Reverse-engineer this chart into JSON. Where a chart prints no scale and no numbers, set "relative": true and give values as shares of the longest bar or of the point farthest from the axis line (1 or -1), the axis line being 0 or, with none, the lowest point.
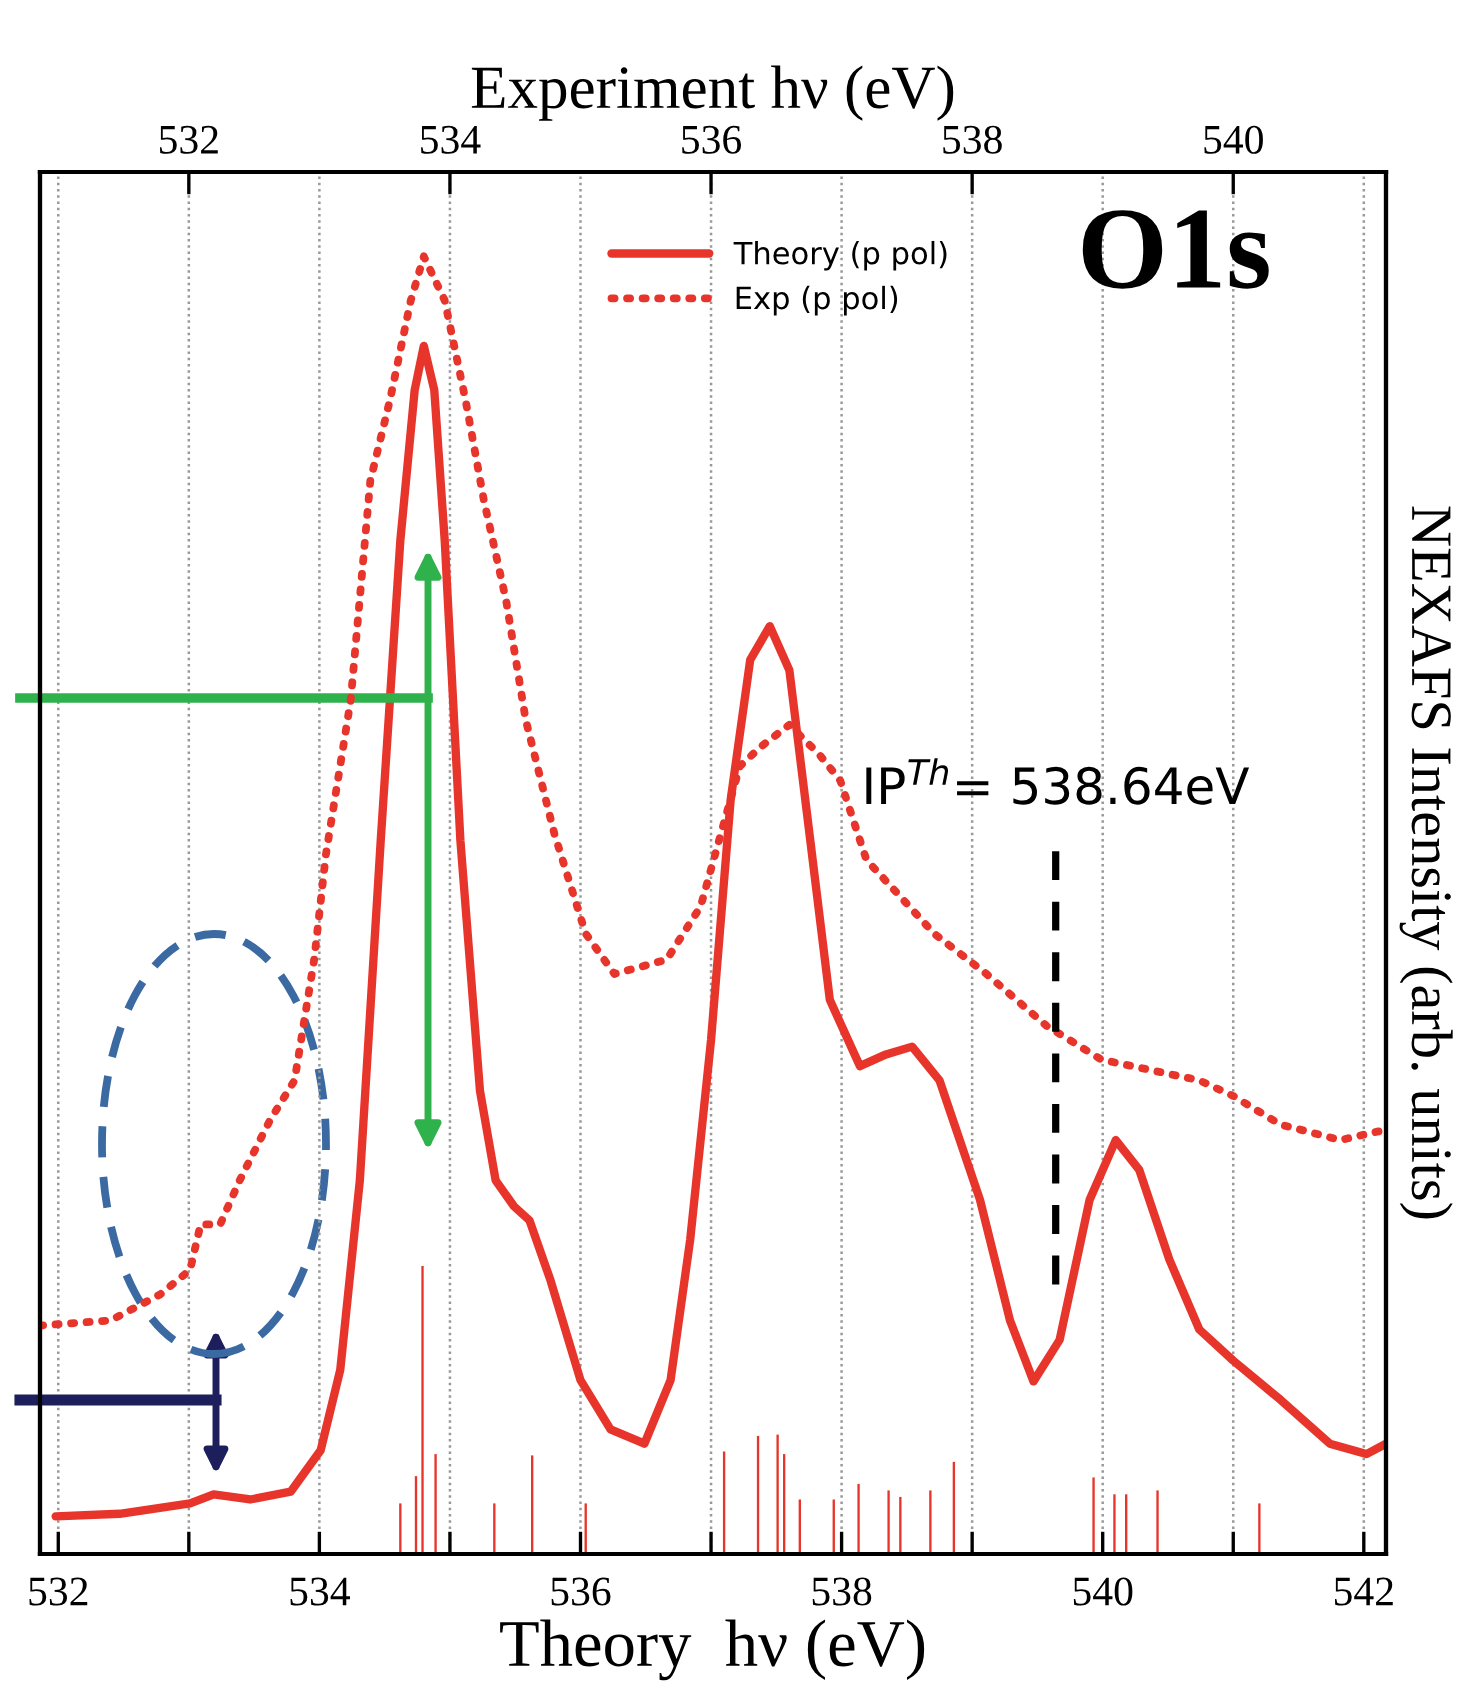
{
  "chart_data": {
    "type": "line",
    "relative": true,
    "xlabel": "Theory  hν (eV)",
    "x2label": "Experiment hν (eV)",
    "ylabel": "NEXAFS Intensity (arb. units)",
    "xlim": [
      531.86,
      542.17
    ],
    "xticks": [
      532,
      {
        "value": 533,
        "label": null
      },
      534,
      {
        "value": 535,
        "label": null
      },
      536,
      {
        "value": 537,
        "label": null
      },
      538,
      {
        "value": 539,
        "label": null
      },
      540,
      {
        "value": 541,
        "label": null
      },
      542
    ],
    "x2lim": [
      530.86,
      541.17
    ],
    "x2ticks": [
      532,
      534,
      536,
      538,
      540
    ],
    "grid": "x",
    "legend": "top",
    "annotations": [
      "O1s"
    ],
    "ref_lines": [
      {
        "axis": "x2",
        "value": 538.64,
        "label": "IP$^{Th}$= 538.64eV",
        "color": "#000000",
        "line_style": "dashed"
      }
    ],
    "series": [
      {
        "name": "Theory (p pol)",
        "color": "#e8352b",
        "line_style": "solid",
        "x": [
          531.98,
          532.47,
          533.01,
          533.19,
          533.47,
          533.78,
          534.01,
          534.16,
          534.31,
          534.47,
          534.62,
          534.73,
          534.8,
          534.88,
          534.96,
          535.08,
          535.23,
          535.35,
          535.49,
          535.61,
          535.77,
          536.0,
          536.23,
          536.49,
          536.69,
          536.84,
          537.0,
          537.15,
          537.3,
          537.45,
          537.6,
          537.76,
          537.91,
          538.14,
          538.34,
          538.54,
          538.75,
          539.06,
          539.29,
          539.47,
          539.67,
          539.9,
          540.1,
          540.28,
          540.51,
          540.74,
          541.0,
          541.36,
          541.74,
          542.02,
          542.17
        ],
        "values": [
          0.029,
          0.031,
          0.039,
          0.046,
          0.042,
          0.048,
          0.08,
          0.142,
          0.288,
          0.55,
          0.781,
          0.897,
          0.931,
          0.897,
          0.781,
          0.55,
          0.357,
          0.288,
          0.268,
          0.257,
          0.211,
          0.134,
          0.096,
          0.085,
          0.134,
          0.242,
          0.396,
          0.581,
          0.689,
          0.715,
          0.681,
          0.55,
          0.427,
          0.376,
          0.385,
          0.391,
          0.365,
          0.273,
          0.18,
          0.133,
          0.165,
          0.273,
          0.319,
          0.296,
          0.227,
          0.173,
          0.149,
          0.119,
          0.085,
          0.077,
          0.085
        ]
      },
      {
        "name": "Exp (p pol)",
        "color": "#e8352b",
        "line_style": "dotted",
        "axis": "x2",
        "x": [
          530.86,
          531.4,
          531.78,
          532.01,
          532.09,
          532.24,
          532.39,
          532.62,
          532.81,
          532.96,
          533.05,
          533.24,
          533.39,
          533.54,
          533.7,
          533.8,
          533.96,
          534.12,
          534.26,
          534.43,
          534.58,
          534.8,
          535.04,
          535.26,
          535.66,
          535.92,
          536.22,
          536.38,
          536.6,
          536.83,
          536.99,
          537.19,
          537.71,
          538.11,
          538.57,
          538.99,
          539.74,
          540.0,
          540.36,
          540.82,
          541.17
        ],
        "values": [
          0.176,
          0.18,
          0.2,
          0.219,
          0.254,
          0.254,
          0.288,
          0.334,
          0.365,
          0.458,
          0.539,
          0.658,
          0.827,
          0.889,
          0.966,
          1.0,
          0.966,
          0.889,
          0.812,
          0.735,
          0.643,
          0.555,
          0.478,
          0.447,
          0.458,
          0.499,
          0.607,
          0.622,
          0.639,
          0.616,
          0.596,
          0.535,
          0.478,
          0.447,
          0.407,
          0.381,
          0.365,
          0.353,
          0.331,
          0.319,
          0.327
        ]
      },
      {
        "type": "bar",
        "color": "#e8352b",
        "x": [
          534.62,
          534.74,
          534.79,
          534.89,
          535.34,
          535.63,
          536.04,
          537.1,
          537.36,
          537.51,
          537.56,
          537.68,
          537.94,
          538.13,
          538.36,
          538.45,
          538.68,
          538.86,
          539.93,
          540.09,
          540.18,
          540.42,
          541.2
        ],
        "values": [
          0.039,
          0.06,
          0.222,
          0.077,
          0.039,
          0.076,
          0.039,
          0.079,
          0.091,
          0.092,
          0.077,
          0.042,
          0.042,
          0.054,
          0.049,
          0.044,
          0.049,
          0.071,
          0.059,
          0.046,
          0.046,
          0.049,
          0.039
        ]
      }
    ]
  }
}
